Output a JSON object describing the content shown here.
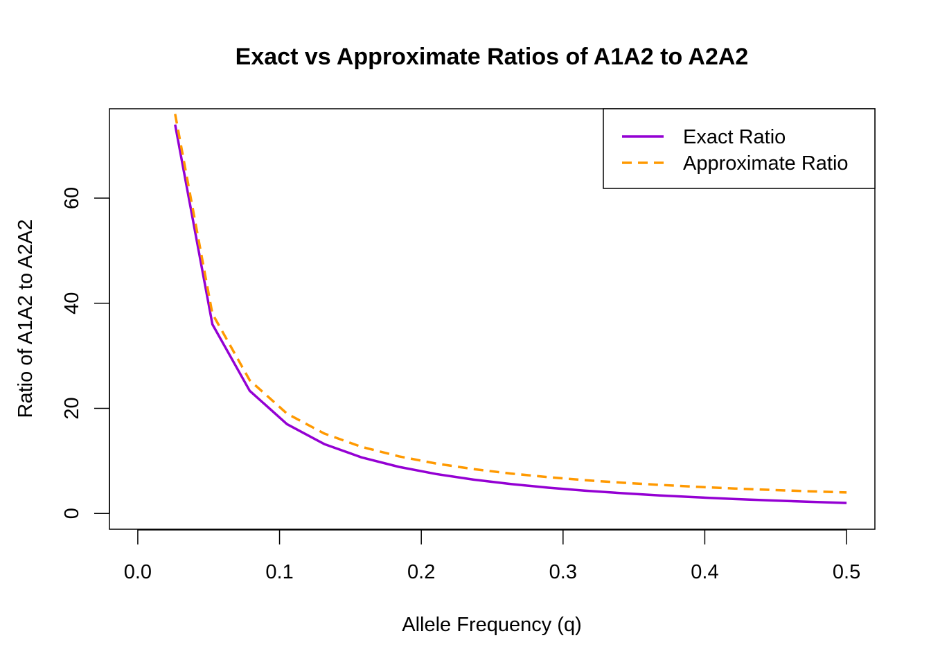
{
  "chart_data": {
    "type": "line",
    "title": "Exact vs Approximate Ratios of A1A2 to A2A2",
    "xlabel": "Allele Frequency (q)",
    "ylabel": "Ratio of A1A2 to A2A2",
    "xlim": [
      -0.02,
      0.52
    ],
    "ylim": [
      -3,
      77
    ],
    "x_ticks": [
      0.0,
      0.1,
      0.2,
      0.3,
      0.4,
      0.5
    ],
    "x_tick_labels": [
      "0.0",
      "0.1",
      "0.2",
      "0.3",
      "0.4",
      "0.5"
    ],
    "y_ticks": [
      0,
      20,
      40,
      60
    ],
    "y_tick_labels": [
      "0",
      "20",
      "40",
      "60"
    ],
    "legend_position": "top-right",
    "grid": false,
    "series": [
      {
        "name": "Exact Ratio",
        "color": "#9400D3",
        "line_style": "solid",
        "x": [
          0.02632,
          0.05263,
          0.07895,
          0.10526,
          0.13158,
          0.15789,
          0.18421,
          0.21053,
          0.23684,
          0.26316,
          0.28947,
          0.31579,
          0.34211,
          0.36842,
          0.39474,
          0.42105,
          0.44737,
          0.47368,
          0.5
        ],
        "y": [
          74.0,
          36.0,
          23.33,
          17.0,
          13.2,
          10.67,
          8.86,
          7.5,
          6.44,
          5.6,
          4.91,
          4.33,
          3.85,
          3.43,
          3.07,
          2.75,
          2.47,
          2.22,
          2.0
        ]
      },
      {
        "name": "Approximate Ratio",
        "color": "#FF9900",
        "line_style": "dashed",
        "x": [
          0.02632,
          0.05263,
          0.07895,
          0.10526,
          0.13158,
          0.15789,
          0.18421,
          0.21053,
          0.23684,
          0.26316,
          0.28947,
          0.31579,
          0.34211,
          0.36842,
          0.39474,
          0.42105,
          0.44737,
          0.47368,
          0.5
        ],
        "y": [
          76.0,
          38.0,
          25.33,
          19.0,
          15.2,
          12.67,
          10.86,
          9.5,
          8.44,
          7.6,
          6.91,
          6.33,
          5.85,
          5.43,
          5.07,
          4.75,
          4.47,
          4.22,
          4.0
        ]
      }
    ]
  }
}
